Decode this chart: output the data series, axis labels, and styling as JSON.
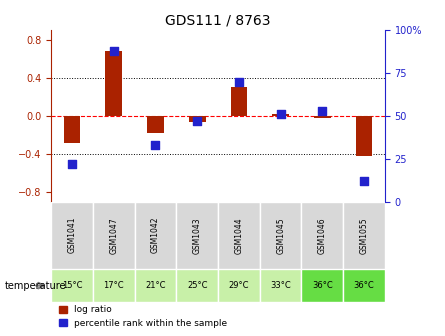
{
  "title": "GDS111 / 8763",
  "samples": [
    "GSM1041",
    "GSM1047",
    "GSM1042",
    "GSM1043",
    "GSM1044",
    "GSM1045",
    "GSM1046",
    "GSM1055"
  ],
  "log_ratios": [
    -0.28,
    0.68,
    -0.18,
    -0.06,
    0.3,
    0.02,
    -0.02,
    -0.42
  ],
  "percentile_ranks": [
    22,
    88,
    33,
    47,
    70,
    51,
    53,
    12
  ],
  "temp_per_sample": [
    "15°C",
    "17°C",
    "21°C",
    "25°C",
    "29°C",
    "33°C",
    "36°C",
    "36°C"
  ],
  "temp_group_per_sample": [
    1,
    1,
    1,
    1,
    1,
    1,
    2,
    2
  ],
  "ylim_left": [
    -0.9,
    0.9
  ],
  "ylim_right": [
    0,
    100
  ],
  "yticks_left": [
    -0.8,
    -0.4,
    0,
    0.4,
    0.8
  ],
  "yticks_right": [
    0,
    25,
    50,
    75,
    100
  ],
  "bar_color": "#aa2200",
  "dot_color": "#2222cc",
  "bg_color_sample": "#d8d8d8",
  "bg_color_green_light": "#c8f0a8",
  "bg_color_green_dark": "#66dd44",
  "temp_label": "temperature",
  "legend_bar": "log ratio",
  "legend_dot": "percentile rank within the sample"
}
